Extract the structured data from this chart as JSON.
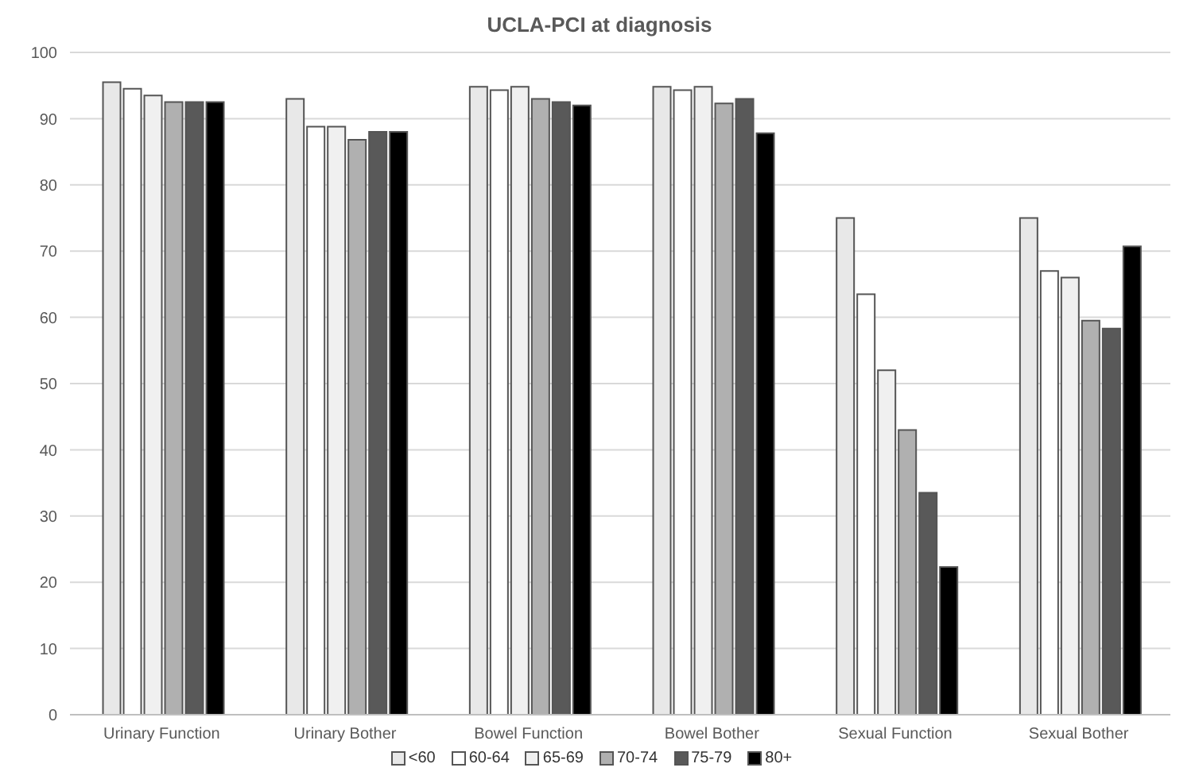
{
  "chart_data": {
    "type": "bar",
    "title": "UCLA-PCI  at diagnosis",
    "categories": [
      "Urinary Function",
      "Urinary Bother",
      "Bowel Function",
      "Bowel Bother",
      "Sexual Function",
      "Sexual Bother"
    ],
    "series": [
      {
        "name": "<60",
        "color": "#e8e8e8",
        "values": [
          95.5,
          93,
          94.8,
          94.8,
          75,
          75
        ]
      },
      {
        "name": "60-64",
        "color": "#ffffff",
        "values": [
          94.5,
          88.8,
          94.3,
          94.3,
          63.5,
          67
        ]
      },
      {
        "name": "65-69",
        "color": "#f0f0f0",
        "values": [
          93.5,
          88.8,
          94.8,
          94.8,
          52,
          66
        ]
      },
      {
        "name": "70-74",
        "color": "#b0b0b0",
        "values": [
          92.5,
          86.8,
          93,
          92.3,
          43,
          59.5
        ]
      },
      {
        "name": "75-79",
        "color": "#595959",
        "values": [
          92.5,
          88,
          92.5,
          93,
          33.5,
          58.3
        ]
      },
      {
        "name": "80+",
        "color": "#000000",
        "values": [
          92.5,
          88,
          92,
          87.8,
          22.3,
          70.7
        ]
      }
    ],
    "ylim": [
      0,
      100
    ],
    "yticks": [
      0,
      10,
      20,
      30,
      40,
      50,
      60,
      70,
      80,
      90,
      100
    ],
    "grid": "y",
    "legend": "bottom"
  }
}
